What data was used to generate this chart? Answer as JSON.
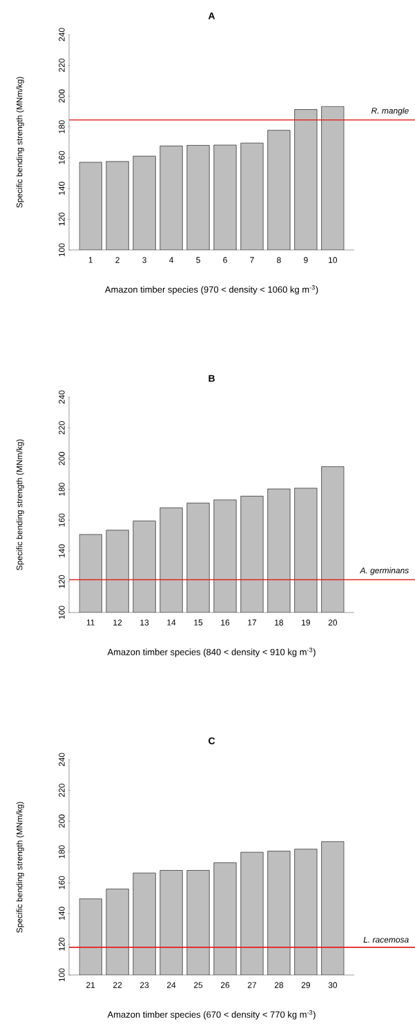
{
  "chart_data": [
    {
      "type": "bar",
      "title": "A",
      "xlabel": "Amazon timber species (970 < density < 1060 kg m$^{-3}$)",
      "ylabel": "Specific bending strength (MNm/kg)",
      "categories": [
        "1",
        "2",
        "3",
        "4",
        "5",
        "6",
        "7",
        "8",
        "9",
        "10"
      ],
      "values": [
        157,
        157.5,
        161,
        167.6,
        168,
        168.2,
        169.5,
        177.8,
        191.3,
        193.3
      ],
      "color": "#bebebe",
      "ylim": [
        100,
        240
      ],
      "yticks": [
        100,
        120,
        140,
        160,
        180,
        200,
        220,
        240
      ],
      "ref_lines": [
        {
          "axis": "y",
          "value": 184.5,
          "label": "R. mangle",
          "color": "#e0201b"
        }
      ]
    },
    {
      "type": "bar",
      "title": "B",
      "xlabel": "Amazon timber species (840 < density < 910 kg m$^{-3}$)",
      "ylabel": "Specific bending strength (MNm/kg)",
      "categories": [
        "11",
        "12",
        "13",
        "14",
        "15",
        "16",
        "17",
        "18",
        "19",
        "20"
      ],
      "values": [
        150.7,
        153.5,
        159.5,
        168,
        171.1,
        173.2,
        175.6,
        180.3,
        180.8,
        194.8
      ],
      "color": "#bebebe",
      "ylim": [
        100,
        240
      ],
      "yticks": [
        100,
        120,
        140,
        160,
        180,
        200,
        220,
        240
      ],
      "ref_lines": [
        {
          "axis": "y",
          "value": 121.3,
          "label": "A. germinans",
          "color": "#e0201b"
        }
      ]
    },
    {
      "type": "bar",
      "title": "C",
      "xlabel": "Amazon timber species (670 < density < 770 kg m$^{-3}$)",
      "ylabel": "Specific bending strength (MNm/kg)",
      "categories": [
        "21",
        "22",
        "23",
        "24",
        "25",
        "26",
        "27",
        "28",
        "29",
        "30"
      ],
      "values": [
        149.5,
        155.9,
        166.3,
        168,
        168,
        173,
        179.8,
        180.5,
        181.8,
        186.7
      ],
      "color": "#bebebe",
      "ylim": [
        100,
        240
      ],
      "yticks": [
        100,
        120,
        140,
        160,
        180,
        200,
        220,
        240
      ],
      "ref_lines": [
        {
          "axis": "y",
          "value": 118,
          "label": "L. racemosa",
          "color": "#e0201b"
        }
      ]
    }
  ]
}
